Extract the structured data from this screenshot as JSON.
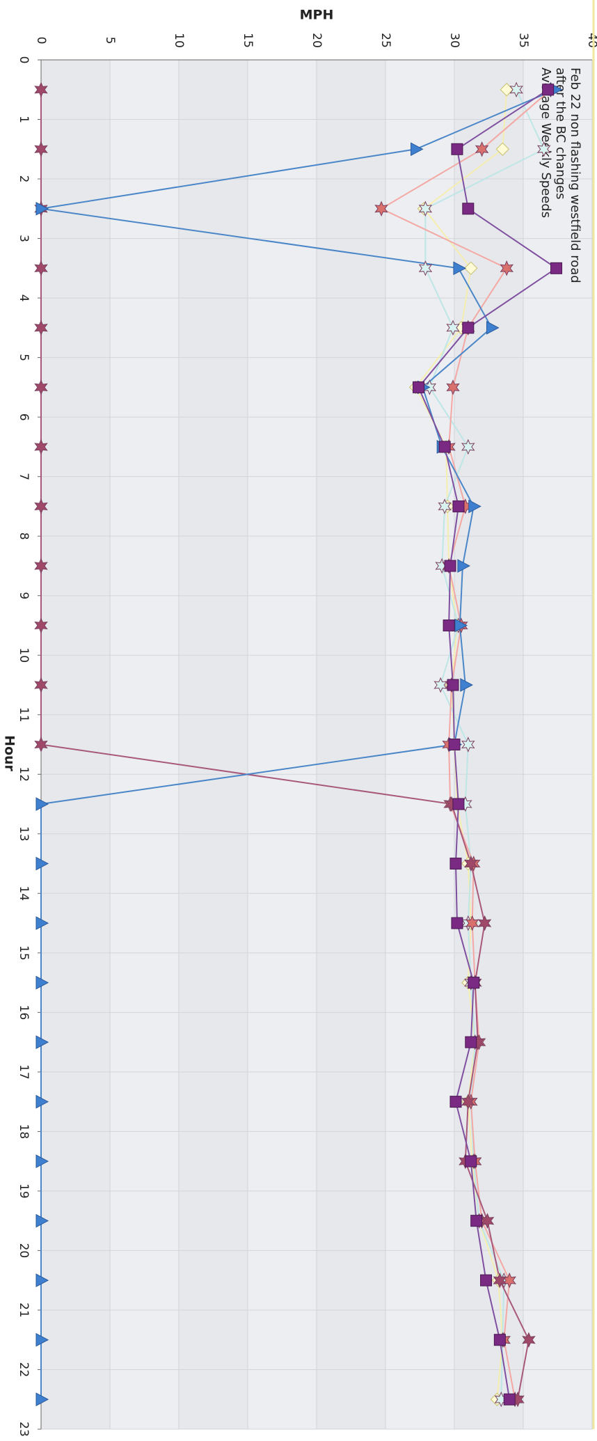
{
  "chart_data": {
    "type": "line",
    "title": [
      "Feb 22 non flashing westfield road",
      "after the BC changes",
      "Average Weekly Speeds"
    ],
    "x_label": "Hour",
    "y_label": "MPH",
    "x": [
      0.5,
      1.5,
      2.5,
      3.5,
      4.5,
      5.5,
      6.5,
      7.5,
      8.5,
      9.5,
      10.5,
      11.5,
      12.5,
      13.5,
      14.5,
      15.5,
      16.5,
      17.5,
      18.5,
      19.5,
      20.5,
      21.5,
      22.5
    ],
    "xlim": [
      0,
      23
    ],
    "xticks": [
      0,
      1,
      2,
      3,
      4,
      5,
      6,
      7,
      8,
      9,
      10,
      11,
      12,
      13,
      14,
      15,
      16,
      17,
      18,
      19,
      20,
      21,
      22,
      23
    ],
    "ylim": [
      0,
      40
    ],
    "yticks": [
      0,
      5,
      10,
      15,
      20,
      25,
      30,
      35,
      40
    ],
    "grid": true,
    "series": [
      {
        "color": "#f5eeb0",
        "marker": "diamond",
        "marker_color": "#fffbd6",
        "values": [
          33.8,
          33.5,
          27.8,
          31.2,
          30.5,
          27.2,
          29.4,
          29.5,
          29.6,
          30.2,
          29.8,
          30.0,
          30.2,
          31.0,
          31.2,
          31.0,
          31.5,
          31.0,
          31.3,
          31.8,
          33.2,
          33.5,
          33.1
        ]
      },
      {
        "color": "#bfe6e6",
        "marker": "star",
        "marker_color": "#d8f2f0",
        "values": [
          34.5,
          36.5,
          27.9,
          27.9,
          29.9,
          28.2,
          31.0,
          29.3,
          29.1,
          30.3,
          29.0,
          31.0,
          30.8,
          31.2,
          31.0,
          31.2,
          31.5,
          31.2,
          31.4,
          31.8,
          33.6,
          33.5,
          33.4
        ]
      },
      {
        "color": "#f4a8a4",
        "marker": "star",
        "marker_color": "#d9706c",
        "values": [
          37.0,
          32.0,
          24.7,
          33.8,
          31.0,
          29.9,
          29.6,
          30.8,
          29.6,
          30.5,
          29.8,
          29.6,
          29.7,
          31.4,
          31.3,
          31.5,
          31.8,
          31.2,
          31.5,
          32.0,
          34.0,
          33.6,
          34.4
        ]
      },
      {
        "color": "#a8587a",
        "marker": "star",
        "marker_color": "#a04868",
        "values": [
          0,
          0,
          0,
          0,
          0,
          0,
          0,
          0,
          0,
          0,
          0,
          0,
          29.8,
          31.2,
          32.2,
          31.5,
          31.7,
          31.0,
          30.8,
          32.4,
          33.3,
          35.4,
          34.6
        ]
      },
      {
        "color": "#4a86c8",
        "marker": "triangle",
        "marker_color": "#3f7fcf",
        "values": [
          37.3,
          27.2,
          0,
          30.3,
          32.7,
          27.7,
          29.1,
          31.4,
          30.6,
          30.4,
          30.8,
          30.0,
          0,
          0,
          0,
          0,
          0,
          0,
          0,
          0,
          0,
          0,
          0
        ]
      },
      {
        "color": "#8050a0",
        "marker": "square",
        "marker_color": "#7a2a82",
        "values": [
          36.8,
          30.2,
          31.0,
          37.4,
          31.0,
          27.4,
          29.3,
          30.3,
          29.7,
          29.6,
          29.9,
          30.0,
          30.3,
          30.1,
          30.2,
          31.4,
          31.2,
          30.1,
          31.2,
          31.6,
          32.3,
          33.3,
          34.0
        ]
      }
    ]
  }
}
